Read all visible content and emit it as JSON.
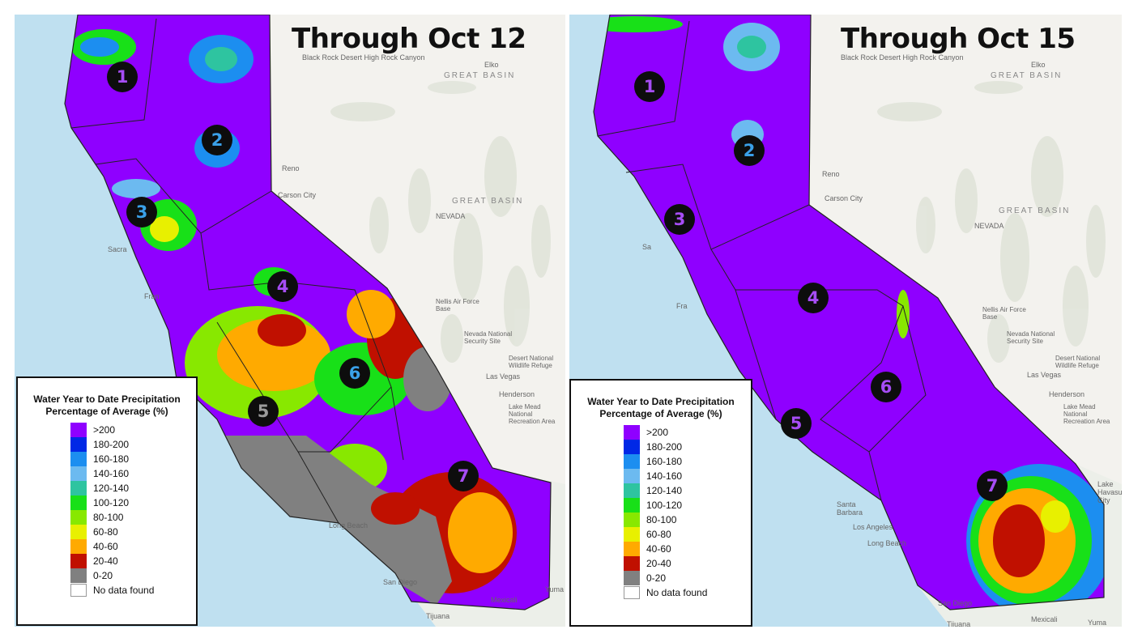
{
  "panels": [
    {
      "title": "Through Oct 12",
      "regions": [
        {
          "number": "1",
          "style": "c-violet"
        },
        {
          "number": "2",
          "style": "c-blue"
        },
        {
          "number": "3",
          "style": "c-blue"
        },
        {
          "number": "4",
          "style": "c-violet"
        },
        {
          "number": "5",
          "style": "c-gray"
        },
        {
          "number": "6",
          "style": "c-blue"
        },
        {
          "number": "7",
          "style": "c-violet"
        }
      ],
      "places": [
        "Black Rock Desert High Rock Canyon",
        "GREAT BASIN",
        "Elko",
        "Reno",
        "Carson City",
        "GREAT BASIN",
        "NEVADA",
        "Nellis Air Force Base",
        "Nevada National Security Site",
        "Desert National Wildlife Refuge",
        "Las Vegas",
        "Henderson",
        "Lake Mead National Recreation Area",
        "Long Beach",
        "San Diego",
        "Tijuana",
        "Mexicali",
        "Yuma",
        "Fran",
        "Sacra"
      ]
    },
    {
      "title": "Through Oct 15",
      "regions": [
        {
          "number": "1",
          "style": "c-violet"
        },
        {
          "number": "2",
          "style": "c-blue"
        },
        {
          "number": "3",
          "style": "c-violet"
        },
        {
          "number": "4",
          "style": "c-violet"
        },
        {
          "number": "5",
          "style": "c-violet"
        },
        {
          "number": "6",
          "style": "c-violet"
        },
        {
          "number": "7",
          "style": "c-violet"
        }
      ],
      "places": [
        "Black Rock Desert High Rock Canyon",
        "GREAT BASIN",
        "Elko",
        "Reno",
        "Carson City",
        "GREAT BASIN",
        "NEVADA",
        "Nellis Air Force Base",
        "Nevada National Security Site",
        "Desert National Wildlife Refuge",
        "Las Vegas",
        "Henderson",
        "Lake Mead National Recreation Area",
        "Santa Barbara",
        "Los Angeles",
        "Long Beach",
        "San Diego",
        "Tijuana",
        "Mexicali",
        "Yuma",
        "Lake Havasu City",
        "Sa",
        "Fra"
      ]
    }
  ],
  "legend": {
    "title_line1": "Water Year to Date Precipitation",
    "title_line2": "Percentage of Average (%)",
    "items": [
      {
        "label": ">200",
        "color": "#8f00ff"
      },
      {
        "label": "180-200",
        "color": "#0028e6"
      },
      {
        "label": "160-180",
        "color": "#1c8ef0"
      },
      {
        "label": "140-160",
        "color": "#6cbaf0"
      },
      {
        "label": "120-140",
        "color": "#2ec4a0"
      },
      {
        "label": "100-120",
        "color": "#18e018"
      },
      {
        "label": "80-100",
        "color": "#88e800"
      },
      {
        "label": "60-80",
        "color": "#e8f000"
      },
      {
        "label": "40-60",
        "color": "#ffaa00"
      },
      {
        "label": "20-40",
        "color": "#c01000"
      },
      {
        "label": "0-20",
        "color": "#808080"
      },
      {
        "label": "No data found",
        "color": "#ffffff"
      }
    ]
  }
}
